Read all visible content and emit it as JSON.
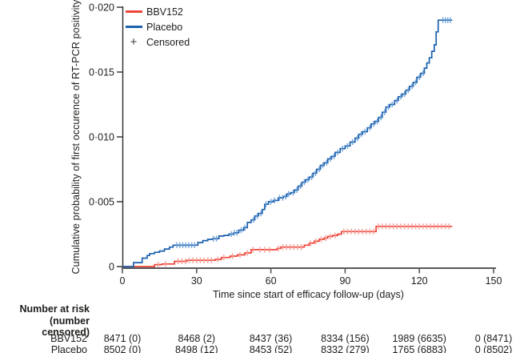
{
  "figure": {
    "legend": [
      {
        "label": "BBV152",
        "swatch": "line",
        "color": "#ee4438"
      },
      {
        "label": "Placebo",
        "swatch": "line",
        "color": "#1a61ae"
      },
      {
        "label": "Censored",
        "swatch": "symbol",
        "symbol": "+",
        "color": "#3c3c3c"
      }
    ],
    "colors": {
      "axis_x": "#58585a",
      "axis_y": "#2b2b2b",
      "text": "#1d1d1b"
    }
  },
  "chart_data": {
    "type": "line",
    "subtype": "kaplan-meier-step-curve",
    "title": "",
    "xlabel": "Time since start of efficacy follow-up (days)",
    "ylabel": "Cumulative probability of first occurence of RT-PCR positivity",
    "xlim": [
      0,
      150
    ],
    "ylim": [
      0,
      0.02
    ],
    "x_ticks": [
      0,
      30,
      60,
      90,
      120,
      150
    ],
    "x_tick_labels": [
      "0",
      "30",
      "60",
      "90",
      "120",
      "150"
    ],
    "y_ticks": [
      0,
      0.005,
      0.01,
      0.015,
      0.02
    ],
    "y_tick_labels": [
      "0",
      "0·005",
      "0·010",
      "0·015",
      "0·020"
    ],
    "grid": false,
    "legend_position": "top-left-inside",
    "series": [
      {
        "name": "BBV152",
        "color": "#ee4438",
        "censor_color": "#f79d94",
        "points": [
          [
            0,
            0
          ],
          [
            13,
            0.00015
          ],
          [
            16,
            0.0002
          ],
          [
            21,
            0.0004
          ],
          [
            26,
            0.00048
          ],
          [
            37.5,
            0.00055
          ],
          [
            40,
            0.0007
          ],
          [
            43.5,
            0.0008
          ],
          [
            46.5,
            0.0009
          ],
          [
            49.5,
            0.00105
          ],
          [
            52,
            0.0013
          ],
          [
            62.5,
            0.0014
          ],
          [
            64,
            0.0015
          ],
          [
            73.5,
            0.00165
          ],
          [
            75.5,
            0.0018
          ],
          [
            77.5,
            0.00195
          ],
          [
            79.5,
            0.0021
          ],
          [
            81.5,
            0.0022
          ],
          [
            83,
            0.00232
          ],
          [
            85,
            0.0024
          ],
          [
            87,
            0.0025
          ],
          [
            88.5,
            0.0027
          ],
          [
            102.5,
            0.0031
          ],
          [
            133.3,
            0.0031
          ]
        ],
        "censor_days": [
          14.5,
          17.5,
          22.5,
          24,
          25.5,
          27,
          28.5,
          30,
          31.5,
          33,
          34.5,
          36,
          38.5,
          41,
          44.5,
          47.5,
          50.5,
          52.8,
          55.5,
          57.5,
          59.5,
          63,
          64.8,
          66.3,
          67.8,
          69.3,
          70.8,
          72.3,
          76,
          78.2,
          80.3,
          82.2,
          84,
          86,
          89.5,
          91,
          92.5,
          94,
          95.5,
          97,
          98.5,
          100,
          101.5,
          103.5,
          105,
          106.5,
          108,
          109.5,
          111,
          112.5,
          114,
          115.5,
          117,
          118.5,
          120,
          121.5,
          123,
          124.5,
          126,
          127.5,
          129,
          130.5,
          132
        ]
      },
      {
        "name": "Placebo",
        "color": "#1a61ae",
        "censor_color": "#6e9fd6",
        "points": [
          [
            0,
            0
          ],
          [
            4.5,
            0.0003
          ],
          [
            8,
            0.00065
          ],
          [
            10,
            0.00085
          ],
          [
            11,
            0.001
          ],
          [
            13,
            0.0011
          ],
          [
            15,
            0.0012
          ],
          [
            17,
            0.00135
          ],
          [
            19,
            0.0015
          ],
          [
            20.5,
            0.00165
          ],
          [
            30.5,
            0.00185
          ],
          [
            32.5,
            0.002
          ],
          [
            34.5,
            0.0021
          ],
          [
            36.5,
            0.00215
          ],
          [
            39,
            0.00235
          ],
          [
            41,
            0.0024
          ],
          [
            43,
            0.0025
          ],
          [
            45,
            0.0026
          ],
          [
            47,
            0.0028
          ],
          [
            49,
            0.003
          ],
          [
            50.5,
            0.0034
          ],
          [
            52,
            0.0036
          ],
          [
            53.5,
            0.0039
          ],
          [
            55,
            0.0041
          ],
          [
            56.5,
            0.0044
          ],
          [
            57.5,
            0.0048
          ],
          [
            59,
            0.005
          ],
          [
            61,
            0.0051
          ],
          [
            63,
            0.0053
          ],
          [
            65,
            0.0054
          ],
          [
            66.5,
            0.0056
          ],
          [
            68,
            0.0057
          ],
          [
            69.5,
            0.0059
          ],
          [
            71,
            0.0062
          ],
          [
            72.5,
            0.0065
          ],
          [
            74,
            0.0067
          ],
          [
            75.5,
            0.0069
          ],
          [
            77,
            0.0072
          ],
          [
            78.5,
            0.0075
          ],
          [
            80,
            0.0078
          ],
          [
            81.5,
            0.008
          ],
          [
            83,
            0.0083
          ],
          [
            84.5,
            0.0085
          ],
          [
            86,
            0.0088
          ],
          [
            88,
            0.0091
          ],
          [
            90,
            0.0093
          ],
          [
            92,
            0.0096
          ],
          [
            94,
            0.0099
          ],
          [
            95.5,
            0.0102
          ],
          [
            97,
            0.0104
          ],
          [
            99,
            0.0107
          ],
          [
            100.5,
            0.011
          ],
          [
            102,
            0.0112
          ],
          [
            103.5,
            0.0115
          ],
          [
            105,
            0.0119
          ],
          [
            106.5,
            0.0123
          ],
          [
            108,
            0.0125
          ],
          [
            110,
            0.0128
          ],
          [
            111.5,
            0.0131
          ],
          [
            113,
            0.0133
          ],
          [
            114.5,
            0.0136
          ],
          [
            116,
            0.0139
          ],
          [
            117.5,
            0.0142
          ],
          [
            119,
            0.0146
          ],
          [
            120.5,
            0.0149
          ],
          [
            122,
            0.0153
          ],
          [
            123,
            0.0157
          ],
          [
            124,
            0.0161
          ],
          [
            125,
            0.0166
          ],
          [
            126,
            0.0171
          ],
          [
            126.8,
            0.0181
          ],
          [
            127.6,
            0.019
          ],
          [
            133.3,
            0.019
          ]
        ],
        "censor_days": [
          22,
          23.2,
          24.4,
          25.6,
          26.8,
          28,
          29.2,
          36.8,
          38,
          44,
          45.2,
          46.2,
          48,
          49.5,
          53,
          54.5,
          56,
          58,
          60,
          61.5,
          63.5,
          64.8,
          66,
          67.2,
          69,
          70.5,
          72,
          73.5,
          75,
          76.5,
          78,
          79.5,
          81,
          82.5,
          84,
          85.5,
          87,
          89,
          91,
          93,
          95,
          96.5,
          98,
          100,
          101.5,
          103,
          104.5,
          106,
          107.5,
          109,
          111,
          112.5,
          114,
          115.5,
          117,
          118.5,
          120,
          121.5,
          129.5,
          130.5,
          131.5,
          132.5
        ]
      }
    ]
  },
  "risk_table": {
    "header_line1": "Number at risk",
    "header_line2": "(number censored)",
    "time_points": [
      0,
      30,
      60,
      90,
      120,
      150
    ],
    "rows": [
      {
        "label": "BBV152",
        "values": [
          "8471 (0)",
          "8468 (2)",
          "8437 (36)",
          "8334 (156)",
          "1989 (6635)",
          "0 (8471)"
        ]
      },
      {
        "label": "Placebo",
        "values": [
          "8502 (0)",
          "8498 (12)",
          "8453 (52)",
          "8332 (279)",
          "1765 (6883)",
          "0 (8502)"
        ]
      }
    ]
  }
}
